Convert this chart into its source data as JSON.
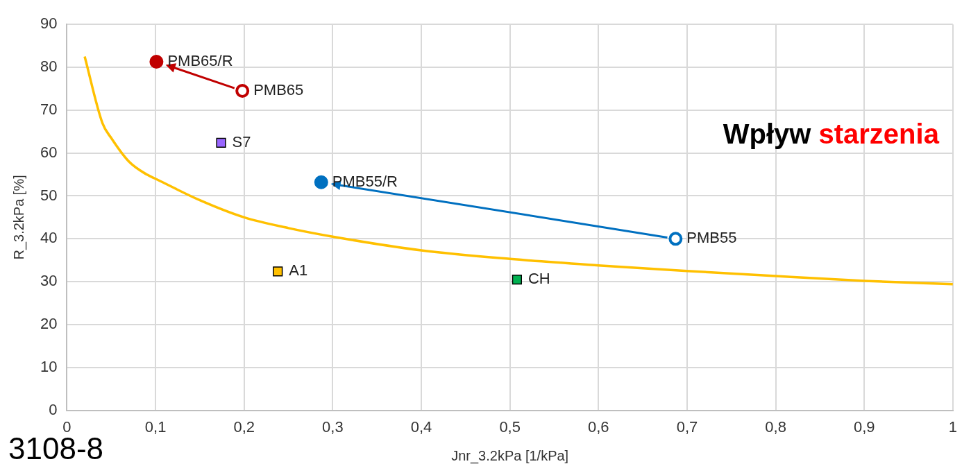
{
  "chart_data": {
    "type": "scatter",
    "xlabel": "Jnr_3.2kPa [1/kPa]",
    "ylabel": "R_3.2kPa [%]",
    "xlim": [
      0,
      1
    ],
    "ylim": [
      0,
      90
    ],
    "xticks": [
      0,
      {
        "value": 0.1,
        "label": "0,1"
      },
      {
        "value": 0.2,
        "label": "0,2"
      },
      {
        "value": 0.3,
        "label": "0,3"
      },
      {
        "value": 0.4,
        "label": "0,4"
      },
      {
        "value": 0.5,
        "label": "0,5"
      },
      {
        "value": 0.6,
        "label": "0,6"
      },
      {
        "value": 0.7,
        "label": "0,7"
      },
      {
        "value": 0.8,
        "label": "0,8"
      },
      {
        "value": 0.9,
        "label": "0,9"
      },
      1
    ],
    "yticks": [
      0,
      10,
      20,
      30,
      40,
      50,
      60,
      70,
      80,
      90
    ],
    "grid": true,
    "legend": false,
    "annotations": [
      "Wpływ starzenia",
      "3108-8"
    ],
    "series": [
      {
        "type": "line",
        "color": "#ffc000",
        "marker": "none",
        "x": [
          0.02,
          0.04,
          0.05,
          0.07,
          0.09,
          0.1,
          0.15,
          0.2,
          0.25,
          0.3,
          0.4,
          0.5,
          0.6,
          0.7,
          0.8,
          0.9,
          1.0
        ],
        "values": [
          82.5,
          67,
          63.5,
          58,
          55,
          54,
          49,
          45,
          42.5,
          40.5,
          37.3,
          35.3,
          33.8,
          32.5,
          31.3,
          30.2,
          29.4
        ]
      },
      {
        "name": "PMB65/R",
        "color": "#c00000",
        "marker": "circle",
        "x": [
          0.101
        ],
        "values": [
          81.3
        ]
      },
      {
        "name": "PMB65",
        "color": "#c00000",
        "marker": "circle",
        "x": [
          0.198
        ],
        "values": [
          74.5
        ]
      },
      {
        "name": "S7",
        "color": "#9966ff",
        "marker": "square",
        "x": [
          0.174
        ],
        "values": [
          62.4
        ]
      },
      {
        "name": "PMB55/R",
        "color": "#0070c0",
        "marker": "circle",
        "x": [
          0.287
        ],
        "values": [
          53.2
        ]
      },
      {
        "name": "PMB55",
        "color": "#0070c0",
        "marker": "circle",
        "x": [
          0.687
        ],
        "values": [
          40.0
        ]
      },
      {
        "name": "A1",
        "color": "#ffc000",
        "marker": "square",
        "x": [
          0.238
        ],
        "values": [
          32.4
        ]
      },
      {
        "name": "CH",
        "color": "#00b050",
        "marker": "square",
        "x": [
          0.508
        ],
        "values": [
          30.5
        ]
      }
    ]
  }
}
